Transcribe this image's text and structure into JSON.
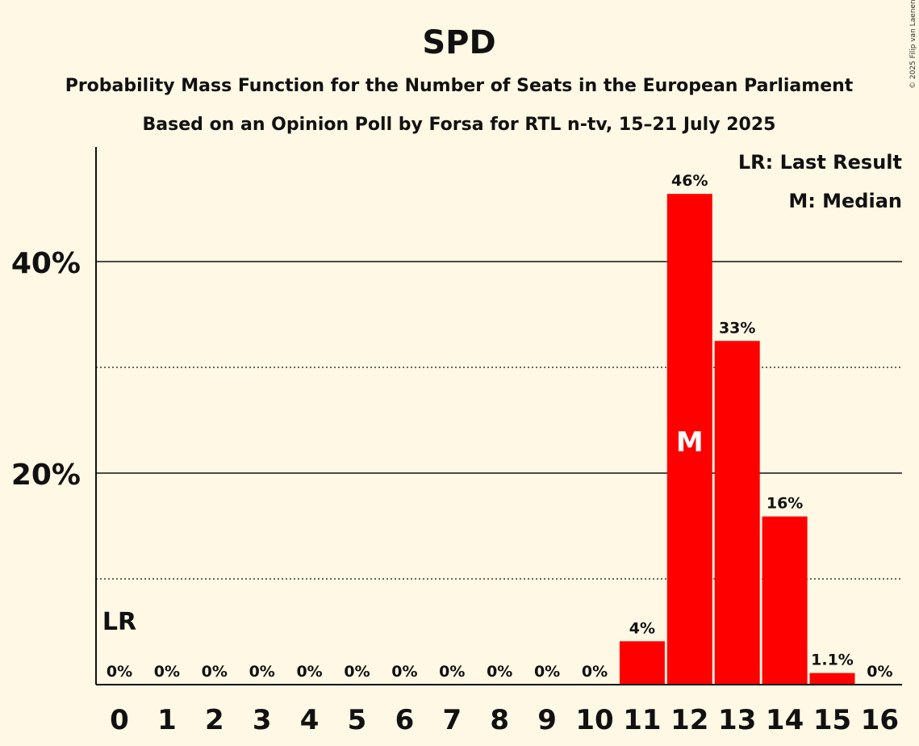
{
  "chart_data": {
    "type": "bar",
    "title": "SPD",
    "subtitle": "Probability Mass Function for the Number of Seats in the European Parliament",
    "subtitle2": "Based on an Opinion Poll by Forsa for RTL n-tv, 15–21 July 2025",
    "copyright": "© 2025 Filip van Laenen",
    "categories": [
      "0",
      "1",
      "2",
      "3",
      "4",
      "5",
      "6",
      "7",
      "8",
      "9",
      "10",
      "11",
      "12",
      "13",
      "14",
      "15",
      "16"
    ],
    "values": [
      0,
      0,
      0,
      0,
      0,
      0,
      0,
      0,
      0,
      0,
      0,
      4.1,
      46.4,
      32.5,
      15.9,
      1.1,
      0
    ],
    "data_labels": [
      "0%",
      "0%",
      "0%",
      "0%",
      "0%",
      "0%",
      "0%",
      "0%",
      "0%",
      "0%",
      "0%",
      "4%",
      "46%",
      "33%",
      "16%",
      "1.1%",
      "0%"
    ],
    "ylim": [
      0,
      50
    ],
    "yticks": [
      {
        "value": 20,
        "label": "20%"
      },
      {
        "value": 40,
        "label": "40%"
      }
    ],
    "minor_gridlines": [
      10,
      30
    ],
    "bar_color": "#FF0000",
    "last_result": {
      "category": "0",
      "label": "LR"
    },
    "median": {
      "category": "12",
      "label": "M"
    },
    "legend": {
      "position": "top-right",
      "items": [
        "LR: Last Result",
        "M: Median"
      ]
    }
  }
}
